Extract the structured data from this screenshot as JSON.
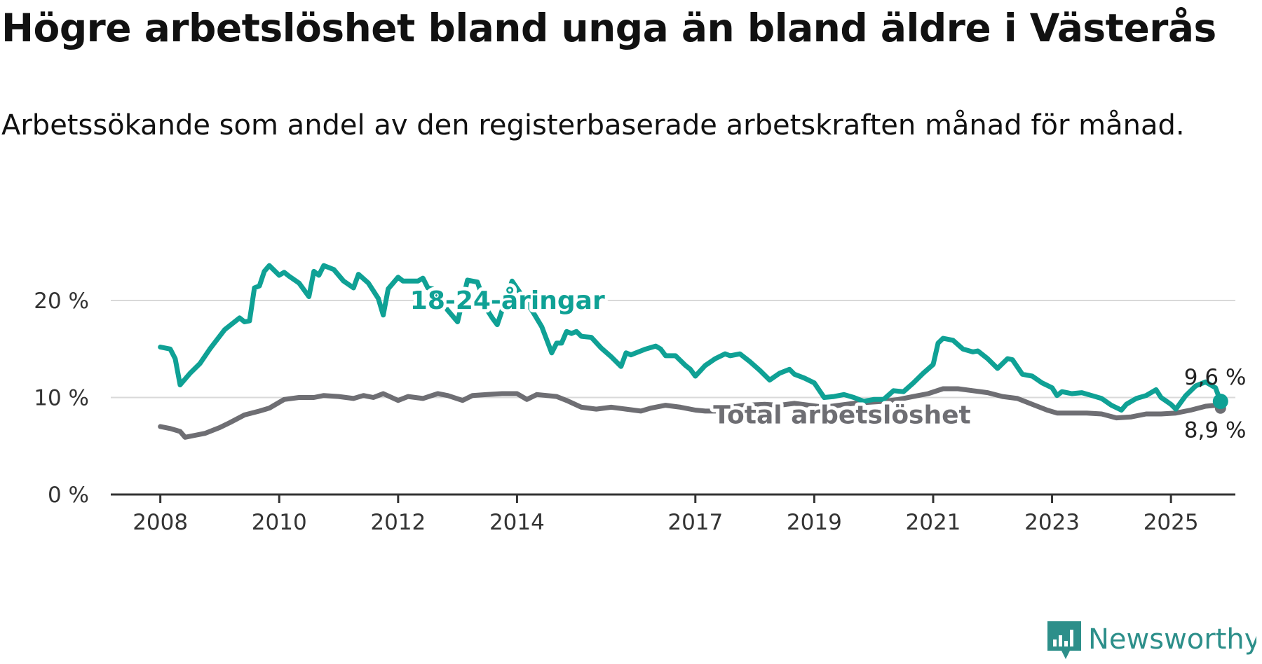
{
  "title": "Högre arbetslöshet bland unga än bland äldre i Västerås",
  "subtitle": "Arbetssökande som andel av den registerbaserade arbetskraften månad för månad.",
  "brand": {
    "name": "Newsworthy",
    "icon": "newsworthy-chart-logo-icon",
    "color": "#2d8f8a"
  },
  "chart_data": {
    "type": "line",
    "x_ticks": [
      "2008",
      "2010",
      "2012",
      "2014",
      "2017",
      "2019",
      "2021",
      "2023",
      "2025"
    ],
    "y_ticks": [
      0,
      10,
      20
    ],
    "y_tick_labels": [
      "0 %",
      "10 %",
      "20 %"
    ],
    "ylim": [
      0,
      25
    ],
    "xlim": [
      "2007-03",
      "2026-02"
    ],
    "grid": true,
    "series": [
      {
        "name": "18-24-åringar",
        "color": "#0fa195",
        "end_label": "9,6 %",
        "points": [
          [
            "2008-01",
            15.2
          ],
          [
            "2008-03",
            15.0
          ],
          [
            "2008-04",
            14.0
          ],
          [
            "2008-05",
            11.3
          ],
          [
            "2008-07",
            12.5
          ],
          [
            "2008-09",
            13.5
          ],
          [
            "2008-11",
            15.0
          ],
          [
            "2009-02",
            17.0
          ],
          [
            "2009-05",
            18.2
          ],
          [
            "2009-06",
            17.8
          ],
          [
            "2009-07",
            17.9
          ],
          [
            "2009-08",
            21.3
          ],
          [
            "2009-09",
            21.5
          ],
          [
            "2009-10",
            23.0
          ],
          [
            "2009-11",
            23.6
          ],
          [
            "2010-01",
            22.6
          ],
          [
            "2010-02",
            22.9
          ],
          [
            "2010-03",
            22.5
          ],
          [
            "2010-05",
            21.8
          ],
          [
            "2010-07",
            20.4
          ],
          [
            "2010-08",
            23.0
          ],
          [
            "2010-09",
            22.6
          ],
          [
            "2010-10",
            23.6
          ],
          [
            "2010-12",
            23.2
          ],
          [
            "2011-02",
            22.0
          ],
          [
            "2011-04",
            21.3
          ],
          [
            "2011-05",
            22.7
          ],
          [
            "2011-07",
            21.8
          ],
          [
            "2011-09",
            20.2
          ],
          [
            "2011-10",
            18.5
          ],
          [
            "2011-11",
            21.2
          ],
          [
            "2012-01",
            22.4
          ],
          [
            "2012-02",
            22.0
          ],
          [
            "2012-05",
            22.0
          ],
          [
            "2012-06",
            22.3
          ],
          [
            "2012-07",
            21.3
          ],
          [
            "2012-08",
            21.2
          ],
          [
            "2012-11",
            19.0
          ],
          [
            "2013-01",
            17.8
          ],
          [
            "2013-03",
            22.1
          ],
          [
            "2013-05",
            21.9
          ],
          [
            "2013-07",
            19.0
          ],
          [
            "2013-08",
            18.2
          ],
          [
            "2013-09",
            17.5
          ],
          [
            "2013-11",
            20.5
          ],
          [
            "2013-12",
            22.0
          ],
          [
            "2014-02",
            20.5
          ],
          [
            "2014-04",
            19.0
          ],
          [
            "2014-06",
            17.3
          ],
          [
            "2014-08",
            14.6
          ],
          [
            "2014-09",
            15.6
          ],
          [
            "2014-10",
            15.6
          ],
          [
            "2014-11",
            16.8
          ],
          [
            "2014-12",
            16.6
          ],
          [
            "2015-01",
            16.8
          ],
          [
            "2015-02",
            16.3
          ],
          [
            "2015-04",
            16.2
          ],
          [
            "2015-06",
            15.1
          ],
          [
            "2015-08",
            14.2
          ],
          [
            "2015-10",
            13.2
          ],
          [
            "2015-11",
            14.6
          ],
          [
            "2015-12",
            14.4
          ],
          [
            "2016-03",
            15.0
          ],
          [
            "2016-05",
            15.3
          ],
          [
            "2016-06",
            15.0
          ],
          [
            "2016-07",
            14.3
          ],
          [
            "2016-09",
            14.3
          ],
          [
            "2016-11",
            13.3
          ],
          [
            "2016-12",
            12.9
          ],
          [
            "2017-01",
            12.2
          ],
          [
            "2017-03",
            13.3
          ],
          [
            "2017-05",
            14.0
          ],
          [
            "2017-07",
            14.5
          ],
          [
            "2017-08",
            14.3
          ],
          [
            "2017-10",
            14.5
          ],
          [
            "2017-12",
            13.7
          ],
          [
            "2018-02",
            12.8
          ],
          [
            "2018-04",
            11.8
          ],
          [
            "2018-06",
            12.5
          ],
          [
            "2018-08",
            12.9
          ],
          [
            "2018-09",
            12.4
          ],
          [
            "2018-11",
            12.0
          ],
          [
            "2019-01",
            11.5
          ],
          [
            "2019-03",
            10.0
          ],
          [
            "2019-05",
            10.1
          ],
          [
            "2019-07",
            10.3
          ],
          [
            "2019-09",
            10.0
          ],
          [
            "2019-11",
            9.6
          ],
          [
            "2020-01",
            9.8
          ],
          [
            "2020-03",
            9.8
          ],
          [
            "2020-05",
            10.7
          ],
          [
            "2020-07",
            10.6
          ],
          [
            "2020-09",
            11.5
          ],
          [
            "2020-11",
            12.5
          ],
          [
            "2021-01",
            13.4
          ],
          [
            "2021-02",
            15.6
          ],
          [
            "2021-03",
            16.1
          ],
          [
            "2021-05",
            15.9
          ],
          [
            "2021-07",
            15.0
          ],
          [
            "2021-09",
            14.7
          ],
          [
            "2021-10",
            14.8
          ],
          [
            "2021-12",
            14.0
          ],
          [
            "2022-02",
            13.0
          ],
          [
            "2022-04",
            14.0
          ],
          [
            "2022-05",
            13.9
          ],
          [
            "2022-07",
            12.4
          ],
          [
            "2022-09",
            12.2
          ],
          [
            "2022-11",
            11.5
          ],
          [
            "2023-01",
            11.0
          ],
          [
            "2023-02",
            10.2
          ],
          [
            "2023-03",
            10.6
          ],
          [
            "2023-05",
            10.4
          ],
          [
            "2023-07",
            10.5
          ],
          [
            "2023-09",
            10.2
          ],
          [
            "2023-11",
            9.9
          ],
          [
            "2024-01",
            9.2
          ],
          [
            "2024-03",
            8.7
          ],
          [
            "2024-04",
            9.3
          ],
          [
            "2024-06",
            9.9
          ],
          [
            "2024-08",
            10.2
          ],
          [
            "2024-10",
            10.8
          ],
          [
            "2024-11",
            10.0
          ],
          [
            "2025-01",
            9.3
          ],
          [
            "2025-02",
            8.8
          ],
          [
            "2025-04",
            10.2
          ],
          [
            "2025-06",
            11.2
          ],
          [
            "2025-08",
            11.6
          ],
          [
            "2025-10",
            11.0
          ],
          [
            "2025-11",
            9.6
          ]
        ]
      },
      {
        "name": "Total arbetslöshet",
        "color": "#6e6e73",
        "end_label": "8,9 %",
        "points": [
          [
            "2008-01",
            7.0
          ],
          [
            "2008-03",
            6.8
          ],
          [
            "2008-05",
            6.5
          ],
          [
            "2008-06",
            5.9
          ],
          [
            "2008-08",
            6.1
          ],
          [
            "2008-10",
            6.3
          ],
          [
            "2009-01",
            6.9
          ],
          [
            "2009-03",
            7.4
          ],
          [
            "2009-06",
            8.2
          ],
          [
            "2009-09",
            8.6
          ],
          [
            "2009-11",
            8.9
          ],
          [
            "2010-02",
            9.8
          ],
          [
            "2010-05",
            10.0
          ],
          [
            "2010-08",
            10.0
          ],
          [
            "2010-10",
            10.2
          ],
          [
            "2011-01",
            10.1
          ],
          [
            "2011-04",
            9.9
          ],
          [
            "2011-06",
            10.2
          ],
          [
            "2011-08",
            10.0
          ],
          [
            "2011-10",
            10.4
          ],
          [
            "2012-01",
            9.7
          ],
          [
            "2012-03",
            10.1
          ],
          [
            "2012-06",
            9.9
          ],
          [
            "2012-09",
            10.4
          ],
          [
            "2012-11",
            10.2
          ],
          [
            "2013-02",
            9.7
          ],
          [
            "2013-04",
            10.2
          ],
          [
            "2013-07",
            10.3
          ],
          [
            "2013-10",
            10.4
          ],
          [
            "2014-01",
            10.4
          ],
          [
            "2014-03",
            9.8
          ],
          [
            "2014-05",
            10.3
          ],
          [
            "2014-07",
            10.2
          ],
          [
            "2014-09",
            10.1
          ],
          [
            "2014-11",
            9.7
          ],
          [
            "2015-02",
            9.0
          ],
          [
            "2015-05",
            8.8
          ],
          [
            "2015-08",
            9.0
          ],
          [
            "2015-11",
            8.8
          ],
          [
            "2016-02",
            8.6
          ],
          [
            "2016-04",
            8.9
          ],
          [
            "2016-07",
            9.2
          ],
          [
            "2016-10",
            9.0
          ],
          [
            "2017-01",
            8.7
          ],
          [
            "2017-03",
            8.6
          ],
          [
            "2017-05",
            8.6
          ],
          [
            "2017-08",
            9.0
          ],
          [
            "2017-11",
            9.2
          ],
          [
            "2018-03",
            9.3
          ],
          [
            "2018-06",
            9.2
          ],
          [
            "2018-09",
            9.4
          ],
          [
            "2018-12",
            9.2
          ],
          [
            "2019-03",
            9.0
          ],
          [
            "2019-06",
            9.2
          ],
          [
            "2019-09",
            9.4
          ],
          [
            "2019-12",
            9.5
          ],
          [
            "2020-03",
            9.6
          ],
          [
            "2020-06",
            9.8
          ],
          [
            "2020-09",
            10.1
          ],
          [
            "2020-12",
            10.4
          ],
          [
            "2021-03",
            10.9
          ],
          [
            "2021-06",
            10.9
          ],
          [
            "2021-09",
            10.7
          ],
          [
            "2021-12",
            10.5
          ],
          [
            "2022-03",
            10.1
          ],
          [
            "2022-06",
            9.9
          ],
          [
            "2022-09",
            9.3
          ],
          [
            "2022-12",
            8.7
          ],
          [
            "2023-02",
            8.4
          ],
          [
            "2023-05",
            8.4
          ],
          [
            "2023-08",
            8.4
          ],
          [
            "2023-11",
            8.3
          ],
          [
            "2024-02",
            7.9
          ],
          [
            "2024-05",
            8.0
          ],
          [
            "2024-08",
            8.3
          ],
          [
            "2024-11",
            8.3
          ],
          [
            "2025-02",
            8.4
          ],
          [
            "2025-05",
            8.7
          ],
          [
            "2025-08",
            9.1
          ],
          [
            "2025-10",
            9.2
          ],
          [
            "2025-11",
            8.9
          ]
        ]
      }
    ]
  }
}
